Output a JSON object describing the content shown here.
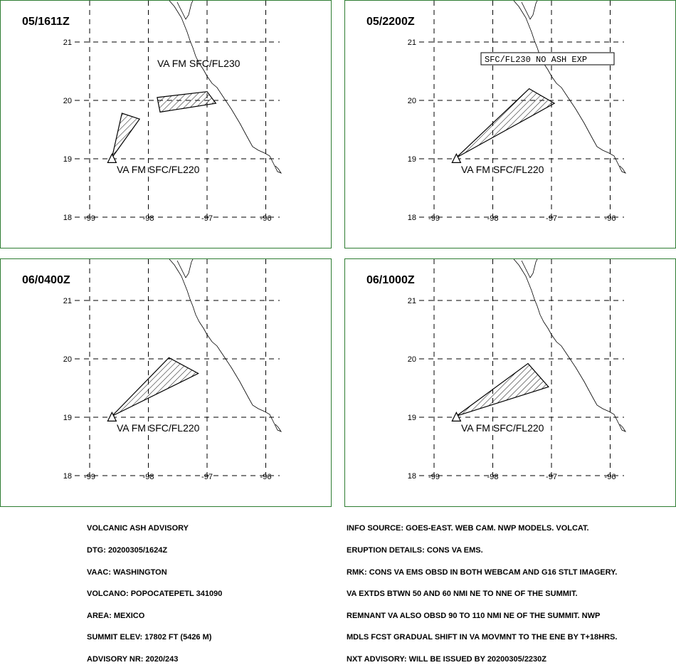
{
  "map": {
    "lat_ticks": [
      "21",
      "20",
      "19",
      "18"
    ],
    "lon_ticks": [
      "-99",
      "-98",
      "-97",
      "-96"
    ],
    "lat_values": [
      21,
      20,
      19,
      18
    ],
    "lon_values": [
      -99,
      -98,
      -97,
      -96
    ],
    "line_color": "#000000",
    "border_color": "#2e7d32",
    "hatch": "diagonal"
  },
  "panels": [
    {
      "title": "05/1611Z",
      "vent": [
        -98.62,
        19.02
      ],
      "polygons": [
        [
          [
            -98.62,
            19.02
          ],
          [
            -98.45,
            19.78
          ],
          [
            -98.15,
            19.68
          ]
        ],
        [
          [
            -97.85,
            20.05
          ],
          [
            -97.0,
            20.15
          ],
          [
            -96.85,
            19.95
          ],
          [
            -97.8,
            19.8
          ]
        ]
      ],
      "labels": [
        "VA FM SFC/FL220",
        "VA FM SFC/FL230"
      ],
      "boxed_text": ""
    },
    {
      "title": "05/2200Z",
      "vent": [
        -98.62,
        19.02
      ],
      "polygons": [
        [
          [
            -98.62,
            19.02
          ],
          [
            -97.38,
            20.2
          ],
          [
            -96.95,
            19.95
          ]
        ]
      ],
      "labels": [
        "VA FM SFC/FL220"
      ],
      "boxed_text": "SFC/FL230 NO ASH EXP"
    },
    {
      "title": "06/0400Z",
      "vent": [
        -98.62,
        19.02
      ],
      "polygons": [
        [
          [
            -98.62,
            19.02
          ],
          [
            -97.65,
            20.02
          ],
          [
            -97.15,
            19.75
          ]
        ]
      ],
      "labels": [
        "VA FM SFC/FL220"
      ],
      "boxed_text": ""
    },
    {
      "title": "06/1000Z",
      "vent": [
        -98.62,
        19.02
      ],
      "polygons": [
        [
          [
            -98.62,
            19.02
          ],
          [
            -97.4,
            19.92
          ],
          [
            -97.05,
            19.52
          ]
        ]
      ],
      "labels": [
        "VA FM SFC/FL220"
      ],
      "boxed_text": ""
    }
  ],
  "advisory_left": [
    "VOLCANIC ASH ADVISORY",
    "DTG: 20200305/1624Z",
    "VAAC: WASHINGTON",
    "VOLCANO: POPOCATEPETL 341090",
    "AREA: MEXICO",
    "SUMMIT ELEV: 17802 FT (5426 M)",
    "ADVISORY NR: 2020/243"
  ],
  "advisory_right": [
    "INFO SOURCE: GOES-EAST. WEB CAM. NWP MODELS. VOLCAT.",
    "ERUPTION DETAILS: CONS VA EMS.",
    "RMK: CONS VA EMS OBSD IN BOTH WEBCAM AND G16 STLT IMAGERY.",
    "VA EXTDS BTWN 50 AND 60 NMI NE TO NNE OF THE SUMMIT.",
    "REMNANT VA ALSO OBSD 90 TO 110 NMI NE OF THE SUMMIT. NWP",
    "MDLS FCST GRADUAL SHIFT IN VA MOVMNT TO THE ENE BY T+18HRS.",
    "NXT ADVISORY: WILL BE ISSUED BY 20200305/2230Z"
  ]
}
